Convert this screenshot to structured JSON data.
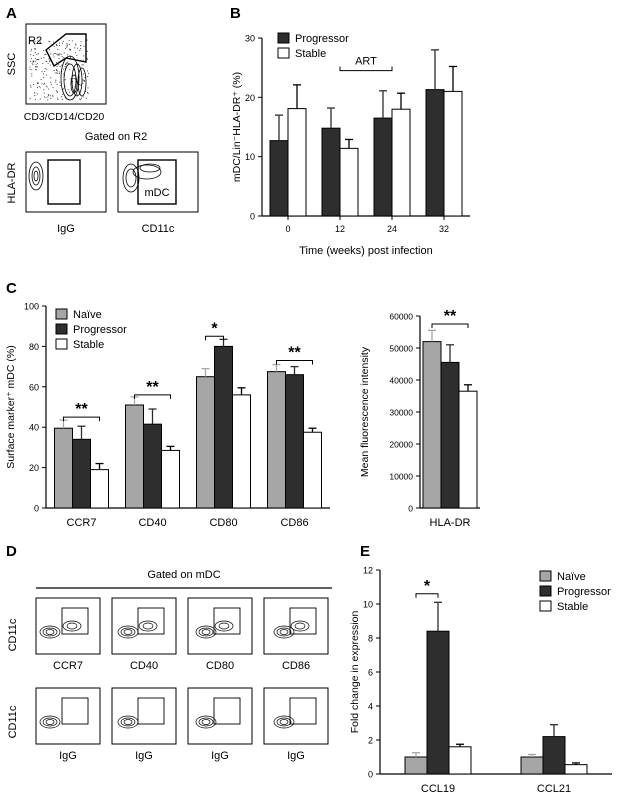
{
  "panels": {
    "A": {
      "letter": "A",
      "gate_label": "R2",
      "ssc_label": "SSC",
      "lineage_label": "CD3/CD14/CD20",
      "gated_title": "Gated on R2",
      "hla_label": "HLA-DR",
      "igg_label": "IgG",
      "cd11c_label": "CD11c",
      "mdc_label": "mDC"
    },
    "B": {
      "letter": "B"
    },
    "C": {
      "letter": "C"
    },
    "D": {
      "letter": "D",
      "title": "Gated on mDC",
      "y_label": "CD11c",
      "top_labels": [
        "CCR7",
        "CD40",
        "CD80",
        "CD86"
      ],
      "bottom_labels": [
        "IgG",
        "IgG",
        "IgG",
        "IgG"
      ]
    },
    "E": {
      "letter": "E"
    }
  },
  "colors": {
    "naive": "#a6a6a6",
    "progressor": "#2e2e2e",
    "stable": "#ffffff",
    "axis": "#000000"
  },
  "chart_data": [
    {
      "id": "B",
      "type": "bar",
      "categories": [
        "0",
        "12",
        "24",
        "32"
      ],
      "series": [
        {
          "name": "Progressor",
          "values": [
            12.7,
            14.8,
            16.5,
            21.3
          ],
          "errors": [
            4.3,
            3.4,
            4.6,
            6.7
          ]
        },
        {
          "name": "Stable",
          "values": [
            18.1,
            11.4,
            18.0,
            21.0
          ],
          "errors": [
            4.0,
            1.5,
            2.7,
            4.2
          ]
        }
      ],
      "xlabel": "Time (weeks) post infection",
      "ylabel": "mDC/Lin⁻HLA-DR⁺ (%)",
      "ylim": [
        0,
        30
      ],
      "yticks": [
        "0",
        "10",
        "20",
        "30"
      ],
      "annotations": [
        {
          "text": "ART"
        }
      ],
      "legend": "top-left"
    },
    {
      "id": "C-left",
      "type": "bar",
      "categories": [
        "CCR7",
        "CD40",
        "CD80",
        "CD86"
      ],
      "series": [
        {
          "name": "Naïve",
          "values": [
            39.5,
            51,
            65,
            67.5
          ],
          "errors": [
            4,
            4,
            4,
            3.5
          ]
        },
        {
          "name": "Progressor",
          "values": [
            34,
            41.5,
            80,
            66
          ],
          "errors": [
            6.5,
            7.5,
            3.5,
            4
          ]
        },
        {
          "name": "Stable",
          "values": [
            19,
            28.5,
            56,
            37.5
          ],
          "errors": [
            3,
            2,
            3.5,
            2
          ]
        }
      ],
      "ylabel": "Surface marker⁺ mDC (%)",
      "ylim": [
        0,
        100
      ],
      "yticks": [
        "0",
        "20",
        "40",
        "60",
        "80",
        "100"
      ],
      "annotations": [
        {
          "text": "**",
          "category": "CCR7"
        },
        {
          "text": "**",
          "category": "CD40"
        },
        {
          "text": "*",
          "category": "CD80"
        },
        {
          "text": "**",
          "category": "CD86"
        }
      ],
      "legend": "top-left"
    },
    {
      "id": "C-right",
      "type": "bar",
      "categories": [
        "HLA-DR"
      ],
      "series": [
        {
          "name": "Naïve",
          "values": [
            52000
          ],
          "errors": [
            3500
          ]
        },
        {
          "name": "Progressor",
          "values": [
            45500
          ],
          "errors": [
            5500
          ]
        },
        {
          "name": "Stable",
          "values": [
            36500
          ],
          "errors": [
            2000
          ]
        }
      ],
      "ylabel": "Mean fluorescence intensity",
      "ylim": [
        0,
        60000
      ],
      "yticks": [
        "0",
        "10000",
        "20000",
        "30000",
        "40000",
        "50000",
        "60000"
      ],
      "annotations": [
        {
          "text": "**",
          "category": "HLA-DR"
        }
      ]
    },
    {
      "id": "E",
      "type": "bar",
      "categories": [
        "CCL19",
        "CCL21"
      ],
      "series": [
        {
          "name": "Naïve",
          "values": [
            1.0,
            1.0
          ],
          "errors": [
            0.25,
            0.15
          ]
        },
        {
          "name": "Progressor",
          "values": [
            8.4,
            2.2
          ],
          "errors": [
            1.7,
            0.7
          ]
        },
        {
          "name": "Stable",
          "values": [
            1.6,
            0.55
          ],
          "errors": [
            0.15,
            0.1
          ]
        }
      ],
      "ylabel": "Fold change in expression",
      "ylim": [
        0,
        12
      ],
      "yticks": [
        "0",
        "2",
        "4",
        "6",
        "8",
        "10",
        "12"
      ],
      "annotations": [
        {
          "text": "*",
          "category": "CCL19"
        }
      ],
      "legend": "top-right"
    }
  ]
}
